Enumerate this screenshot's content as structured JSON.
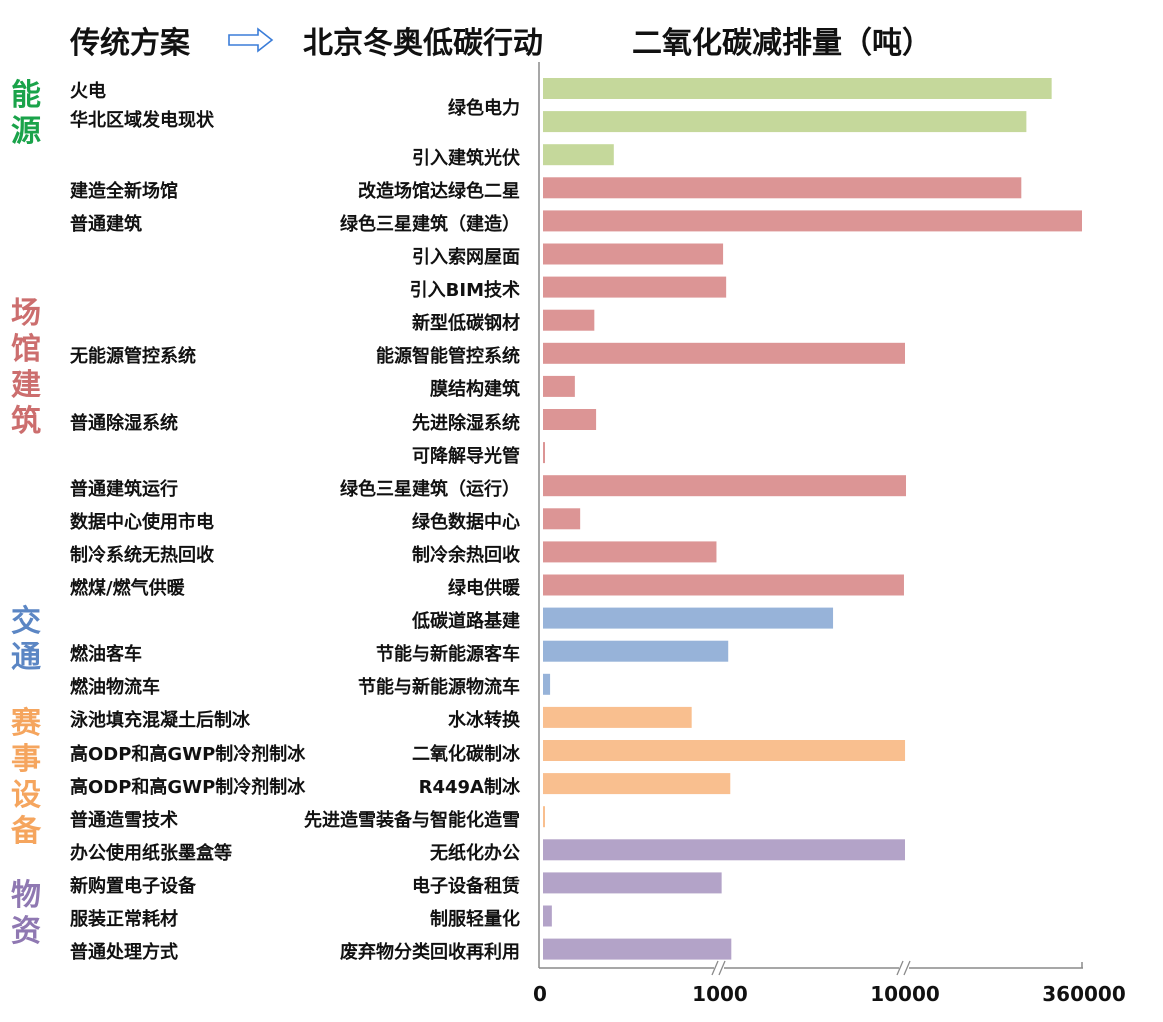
{
  "header": {
    "left": "传统方案",
    "mid": "北京冬奥低碳行动",
    "right": "二氧化碳减排量（吨）"
  },
  "categories": [
    {
      "chars": [
        "能",
        "源"
      ],
      "color": "#1aa34a"
    },
    {
      "chars": [
        "场",
        "馆",
        "建",
        "筑"
      ],
      "color": "#cc6e6e"
    },
    {
      "chars": [
        "交",
        "通"
      ],
      "color": "#5b86c4"
    },
    {
      "chars": [
        "赛",
        "事",
        "设",
        "备"
      ],
      "color": "#f5a55e"
    },
    {
      "chars": [
        "物",
        "资"
      ],
      "color": "#8f78b2"
    }
  ],
  "chart_data": {
    "type": "bar",
    "orientation": "horizontal",
    "xlabel": "二氧化碳减排量（吨）",
    "x_ticks": [
      "0",
      "1000",
      "10000",
      "360000"
    ],
    "x_axis_breaks": true,
    "rows": [
      {
        "traditional": "",
        "action": "",
        "value": 300000,
        "color": "#c5d89b"
      },
      {
        "traditional": "",
        "action": "绿色电力",
        "value": 250000,
        "color": "#c5d89b"
      },
      {
        "traditional": "",
        "action": "引入建筑光伏",
        "value": 400,
        "color": "#c5d89b"
      },
      {
        "traditional": "建造全新场馆",
        "action": "改造场馆达绿色二星",
        "value": 240000,
        "color": "#dc9595"
      },
      {
        "traditional": "普通建筑",
        "action": "绿色三星建筑（建造）",
        "value": 360000,
        "color": "#dc9595"
      },
      {
        "traditional": "",
        "action": "引入索网屋面",
        "value": 1150,
        "color": "#dc9595"
      },
      {
        "traditional": "",
        "action": "引入BIM技术",
        "value": 1300,
        "color": "#dc9595"
      },
      {
        "traditional": "",
        "action": "新型低碳钢材",
        "value": 290,
        "color": "#dc9595"
      },
      {
        "traditional": "无能源管控系统",
        "action": "能源智能管控系统",
        "value": 10000,
        "color": "#dc9595"
      },
      {
        "traditional": "",
        "action": "膜结构建筑",
        "value": 180,
        "color": "#dc9595"
      },
      {
        "traditional": "普通除湿系统",
        "action": "先进除湿系统",
        "value": 300,
        "color": "#dc9595"
      },
      {
        "traditional": "",
        "action": "可降解导光管",
        "value": 10,
        "color": "#dc9595"
      },
      {
        "traditional": "普通建筑运行",
        "action": "绿色三星建筑（运行）",
        "value": 12000,
        "color": "#dc9595"
      },
      {
        "traditional": "数据中心使用市电",
        "action": "绿色数据中心",
        "value": 210,
        "color": "#dc9595"
      },
      {
        "traditional": "制冷系统无热回收",
        "action": "制冷余热回收",
        "value": 980,
        "color": "#dc9595"
      },
      {
        "traditional": "燃煤/燃气供暖",
        "action": "绿电供暖",
        "value": 9950,
        "color": "#dc9595"
      },
      {
        "traditional": "",
        "action": "低碳道路基建",
        "value": 6500,
        "color": "#97b3d9"
      },
      {
        "traditional": "燃油客车",
        "action": "节能与新能源客车",
        "value": 1400,
        "color": "#97b3d9"
      },
      {
        "traditional": "燃油物流车",
        "action": "节能与新能源物流车",
        "value": 40,
        "color": "#97b3d9"
      },
      {
        "traditional": "泳池填充混凝土后制冰",
        "action": "水冰转换",
        "value": 840,
        "color": "#f9bf8f"
      },
      {
        "traditional": "高ODP和高GWP制冷剂制冰",
        "action": "二氧化碳制冰",
        "value": 10100,
        "color": "#f9bf8f"
      },
      {
        "traditional": "高ODP和高GWP制冷剂制冰",
        "action": "R449A制冰",
        "value": 1500,
        "color": "#f9bf8f"
      },
      {
        "traditional": "普通造雪技术",
        "action": "先进造雪装备与智能化造雪",
        "value": 5,
        "color": "#f9bf8f"
      },
      {
        "traditional": "办公使用纸张墨盒等",
        "action": "无纸化办公",
        "value": 10000,
        "color": "#b3a3c8"
      },
      {
        "traditional": "新购置电子设备",
        "action": "电子设备租赁",
        "value": 1080,
        "color": "#b3a3c8"
      },
      {
        "traditional": "服装正常耗材",
        "action": "制服轻量化",
        "value": 50,
        "color": "#b3a3c8"
      },
      {
        "traditional": "普通处理方式",
        "action": "废弃物分类回收再利用",
        "value": 1550,
        "color": "#b3a3c8"
      }
    ],
    "extra_left_labels": [
      {
        "text": "火电"
      },
      {
        "text": "华北区域发电现状"
      }
    ]
  }
}
